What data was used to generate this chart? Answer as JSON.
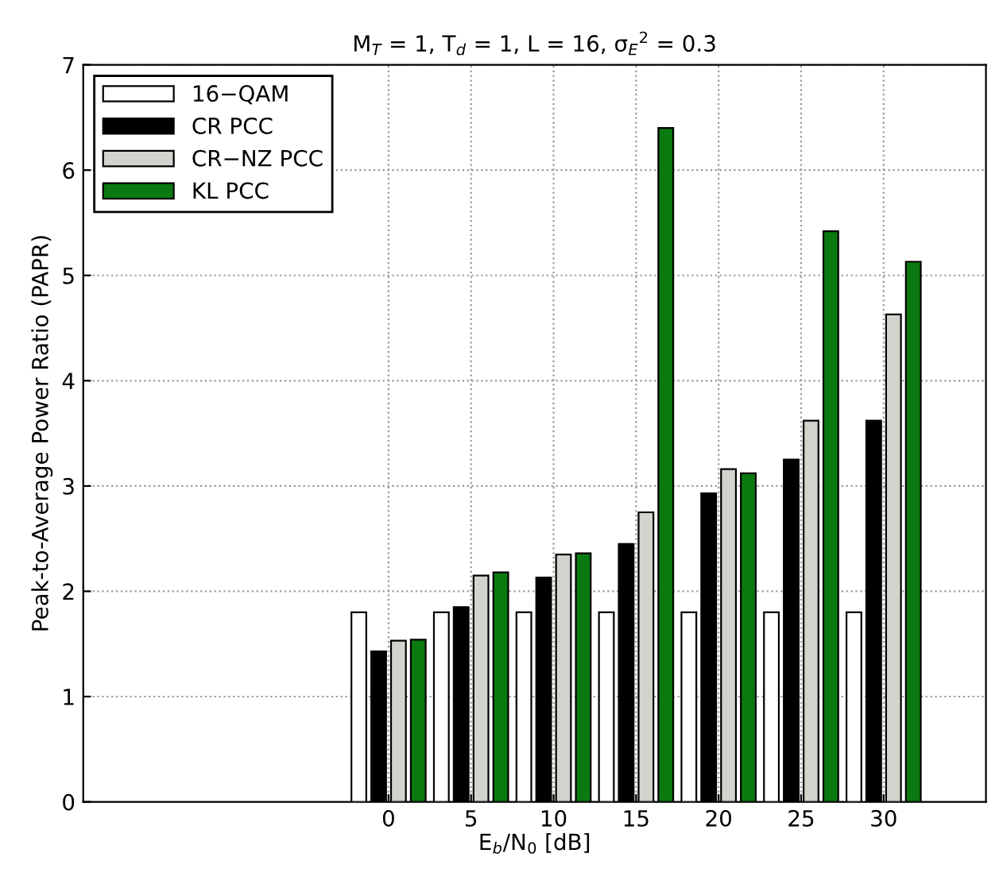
{
  "chart_data": {
    "type": "bar",
    "title": "M$_{T}$ = 1, T$_{d}$ = 1, L = 16, σ$_{E}$$^{2}$ = 0.3",
    "xlabel": "E$_{b}$/N$_{0}$ [dB]",
    "ylabel": "Peak-to-Average Power Ratio (PAPR)",
    "x": [
      0,
      5,
      10,
      15,
      20,
      25,
      30
    ],
    "series": [
      {
        "name": "16−QAM",
        "color": "#ffffff",
        "values": [
          1.8,
          1.8,
          1.8,
          1.8,
          1.8,
          1.8,
          1.8
        ]
      },
      {
        "name": "CR PCC",
        "color": "#000000",
        "values": [
          1.43,
          1.85,
          2.13,
          2.45,
          2.93,
          3.25,
          3.62
        ]
      },
      {
        "name": "CR−NZ PCC",
        "color": "#d4d2cc",
        "values": [
          1.53,
          2.15,
          2.35,
          2.75,
          3.16,
          3.62,
          4.63
        ]
      },
      {
        "name": "KL PCC",
        "color": "#0a7a10",
        "values": [
          1.54,
          2.18,
          2.36,
          6.4,
          3.12,
          5.42,
          5.13
        ]
      }
    ],
    "xlim": [
      -18.5,
      36.2
    ],
    "xticks": [
      0,
      5,
      10,
      15,
      20,
      25,
      30
    ],
    "ylim": [
      0,
      7
    ],
    "yticks": [
      0,
      1,
      2,
      3,
      4,
      5,
      6,
      7
    ],
    "grid": true,
    "legend": "top left"
  }
}
